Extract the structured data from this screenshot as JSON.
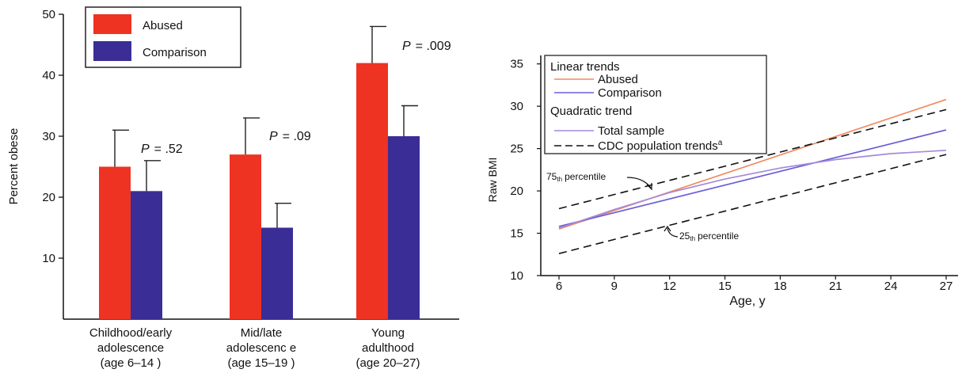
{
  "chart_data": [
    {
      "type": "bar",
      "title": "",
      "xlabel": "",
      "ylabel": "Percent obese",
      "ylim": [
        0,
        50
      ],
      "yticks": [
        10,
        20,
        30,
        40,
        50
      ],
      "categories": [
        [
          "Childhood/early",
          "adolescence",
          "(age 6–14 )"
        ],
        [
          "Mid/late",
          "adolescenc e",
          "(age 15–19 )"
        ],
        [
          "Young",
          "adulthood",
          "(age 20–27)"
        ]
      ],
      "series": [
        {
          "name": "Abused",
          "color": "#ee3323",
          "values": [
            25,
            27,
            42
          ],
          "errors": [
            6,
            6,
            6
          ]
        },
        {
          "name": "Comparison",
          "color": "#3a2d96",
          "values": [
            21,
            15,
            30
          ],
          "errors": [
            5,
            4,
            5
          ]
        }
      ],
      "annotations": [
        {
          "category": 0,
          "p_label": "P",
          "p_value": "= .52",
          "y": 28
        },
        {
          "category": 1,
          "p_label": "P",
          "p_value": "= .09",
          "y": 33
        },
        {
          "category": 2,
          "p_label": "P",
          "p_value": "= .009",
          "y": 45
        }
      ],
      "grid": false,
      "legend": "top-left"
    },
    {
      "type": "line",
      "title": "",
      "xlabel": "Age, y",
      "ylabel": "Raw BMI",
      "xlim": [
        6,
        27
      ],
      "ylim": [
        10,
        36
      ],
      "xticks": [
        6,
        9,
        12,
        15,
        18,
        21,
        24,
        27
      ],
      "yticks": [
        10,
        15,
        20,
        25,
        30,
        35
      ],
      "legend": {
        "position": "top-left",
        "group1_title": "Linear trends",
        "group2_title": "Quadratic trend",
        "cdc_label": "CDC population trends",
        "cdc_superscript": "a"
      },
      "series": [
        {
          "name": "Abused",
          "color": "#f08a5d",
          "style": "solid",
          "x": [
            6,
            27
          ],
          "y": [
            15.5,
            30.8
          ]
        },
        {
          "name": "Comparison",
          "color": "#6a5ed6",
          "style": "solid",
          "x": [
            6,
            27
          ],
          "y": [
            15.8,
            27.2
          ]
        },
        {
          "name": "Total sample",
          "color": "#a58ad8",
          "style": "solid",
          "x": [
            6,
            9,
            12,
            15,
            18,
            21,
            24,
            27
          ],
          "y": [
            15.6,
            17.8,
            19.8,
            21.4,
            22.7,
            23.7,
            24.4,
            24.8
          ]
        },
        {
          "name": "CDC 75th percentile",
          "color": "#111111",
          "style": "dashed",
          "x": [
            6,
            27
          ],
          "y": [
            17.9,
            29.6
          ]
        },
        {
          "name": "CDC 25th percentile",
          "color": "#111111",
          "style": "dashed",
          "x": [
            6,
            27
          ],
          "y": [
            12.6,
            24.3
          ]
        }
      ],
      "annotations": [
        {
          "num": "75",
          "sup": "th",
          "label": "percentile"
        },
        {
          "num": "25",
          "sup": "th",
          "label": "percentile"
        }
      ],
      "grid": false
    }
  ]
}
